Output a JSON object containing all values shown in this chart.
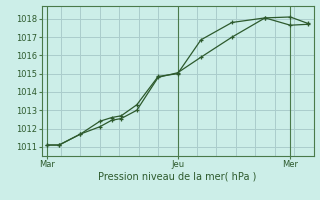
{
  "xlabel": "Pression niveau de la mer( hPa )",
  "background_color": "#cceee8",
  "grid_color_major": "#aacccc",
  "grid_color_minor": "#bbdddd",
  "line_color": "#2d5a2d",
  "xlim": [
    0,
    14
  ],
  "ylim": [
    1010.5,
    1018.7
  ],
  "yticks": [
    1011,
    1012,
    1013,
    1014,
    1015,
    1016,
    1017,
    1018
  ],
  "xtick_labels": [
    "Mar",
    "Jeu",
    "Mer"
  ],
  "xtick_positions": [
    0.3,
    7.0,
    12.8
  ],
  "vline_positions": [
    0.3,
    7.0,
    12.8
  ],
  "line1_x": [
    0.3,
    0.9,
    2.0,
    3.0,
    3.6,
    4.1,
    4.9,
    6.0,
    7.0,
    8.2,
    9.8,
    11.5,
    12.8,
    13.7
  ],
  "line1_y": [
    1011.1,
    1011.1,
    1011.7,
    1012.4,
    1012.6,
    1012.7,
    1013.3,
    1014.85,
    1015.0,
    1016.85,
    1017.8,
    1018.05,
    1017.65,
    1017.7
  ],
  "line2_x": [
    0.3,
    0.9,
    2.0,
    3.0,
    3.6,
    4.1,
    4.9,
    6.0,
    7.0,
    8.2,
    9.8,
    11.5,
    12.8,
    13.7
  ],
  "line2_y": [
    1011.1,
    1011.1,
    1011.7,
    1012.1,
    1012.45,
    1012.55,
    1013.0,
    1014.8,
    1015.05,
    1015.9,
    1017.0,
    1018.05,
    1018.1,
    1017.75
  ],
  "ylabel_fontsize": 6,
  "xlabel_fontsize": 7,
  "xtick_fontsize": 6,
  "ytick_fontsize": 6
}
